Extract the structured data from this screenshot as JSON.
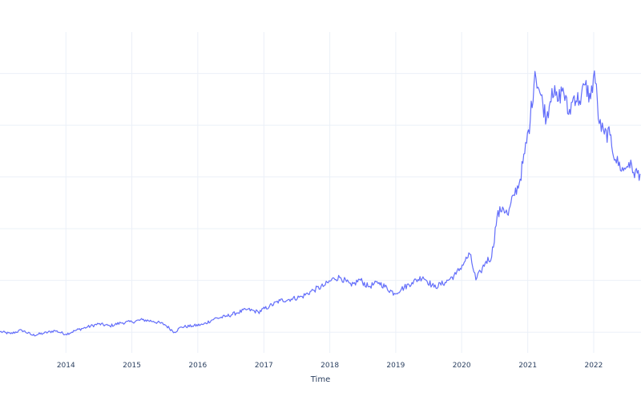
{
  "chart_data": {
    "type": "line",
    "title": "",
    "xlabel": "Time",
    "ylabel": "",
    "xlim": [
      "2013-01-01",
      "2022-09-20"
    ],
    "ylim": [
      -4,
      58
    ],
    "grid": true,
    "legend": "none",
    "x_tick_labels": [
      "2014",
      "2015",
      "2016",
      "2017",
      "2018",
      "2019",
      "2020",
      "2021",
      "2022"
    ],
    "series": [
      {
        "color": "#636efa",
        "x": [
          "2013-01-01",
          "2013-03-01",
          "2013-05-01",
          "2013-07-01",
          "2013-09-01",
          "2013-11-01",
          "2014-01-01",
          "2014-03-01",
          "2014-05-01",
          "2014-07-01",
          "2014-09-01",
          "2014-11-01",
          "2015-01-01",
          "2015-03-01",
          "2015-05-01",
          "2015-07-01",
          "2015-08-25",
          "2015-10-01",
          "2015-12-01",
          "2016-02-01",
          "2016-04-01",
          "2016-06-01",
          "2016-08-01",
          "2016-10-01",
          "2016-12-01",
          "2017-02-01",
          "2017-04-01",
          "2017-06-01",
          "2017-08-01",
          "2017-10-01",
          "2017-12-01",
          "2018-01-25",
          "2018-03-01",
          "2018-05-01",
          "2018-06-15",
          "2018-08-01",
          "2018-10-01",
          "2018-12-24",
          "2019-02-01",
          "2019-04-01",
          "2019-06-01",
          "2019-08-01",
          "2019-10-01",
          "2019-12-01",
          "2020-01-15",
          "2020-02-15",
          "2020-03-20",
          "2020-04-15",
          "2020-05-15",
          "2020-06-15",
          "2020-07-15",
          "2020-08-15",
          "2020-09-15",
          "2020-10-15",
          "2020-11-15",
          "2020-12-15",
          "2021-01-15",
          "2021-02-10",
          "2021-03-10",
          "2021-04-15",
          "2021-05-15",
          "2021-06-15",
          "2021-07-15",
          "2021-08-15",
          "2021-09-15",
          "2021-10-15",
          "2021-11-15",
          "2021-12-15",
          "2022-01-05",
          "2022-02-01",
          "2022-03-01",
          "2022-04-01",
          "2022-05-01",
          "2022-06-15",
          "2022-07-15",
          "2022-08-10",
          "2022-09-15"
        ],
        "values": [
          0.1,
          -0.3,
          0.4,
          -0.6,
          -0.2,
          0.3,
          -0.4,
          0.4,
          1.0,
          1.6,
          1.2,
          1.8,
          2.0,
          2.4,
          2.1,
          1.5,
          0.0,
          1.0,
          1.2,
          1.5,
          2.6,
          3.0,
          3.7,
          4.4,
          3.9,
          5.0,
          6.1,
          6.4,
          6.9,
          8.1,
          9.0,
          10.4,
          10.6,
          8.9,
          10.2,
          8.8,
          9.6,
          7.5,
          8.3,
          9.6,
          10.7,
          8.7,
          9.6,
          11.2,
          13.5,
          15.1,
          10.1,
          11.7,
          13.7,
          14.5,
          22.3,
          24.2,
          22.6,
          26.5,
          28.8,
          34.5,
          41.0,
          50.4,
          46.2,
          41.3,
          47.1,
          44.6,
          47.2,
          42.1,
          45.7,
          44.7,
          47.8,
          45.1,
          50.5,
          40.3,
          38.3,
          38.1,
          33.4,
          31.2,
          32.8,
          30.9,
          30.6
        ]
      }
    ]
  }
}
